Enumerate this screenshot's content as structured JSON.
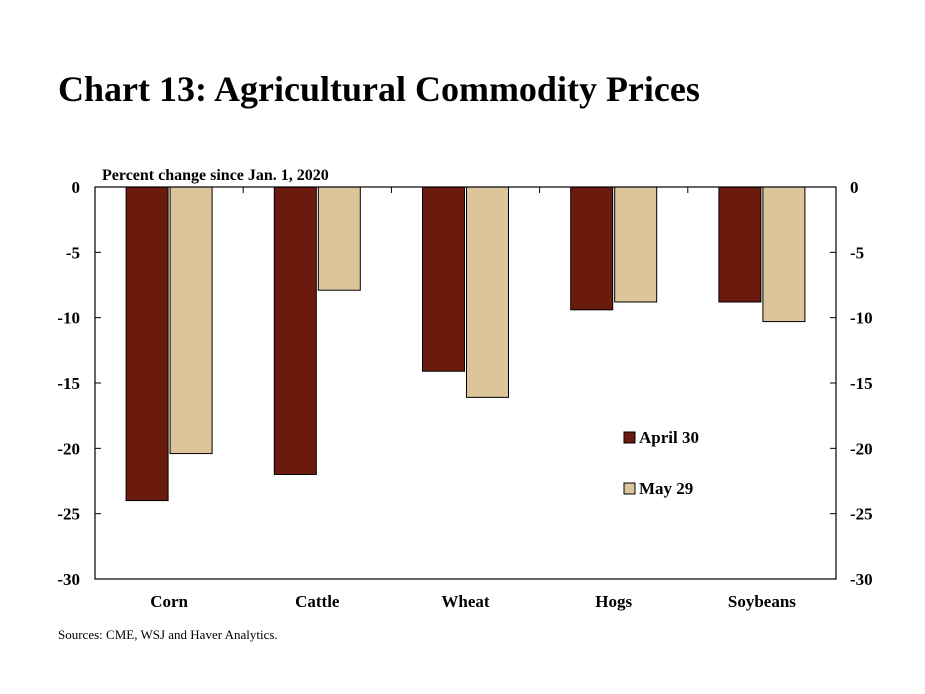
{
  "title": "Chart 13: Agricultural Commodity Prices",
  "source": "Sources: CME, WSJ and Haver Analytics.",
  "chart_data": {
    "type": "bar",
    "ylabel": "Percent change since Jan. 1, 2020",
    "xlabel": "",
    "ylim": [
      -30,
      0
    ],
    "yticks": [
      0,
      -5,
      -10,
      -15,
      -20,
      -25,
      -30
    ],
    "y_axis_sides": "both",
    "grid": false,
    "legend_position": "inside-right",
    "categories": [
      "Corn",
      "Cattle",
      "Wheat",
      "Hogs",
      "Soybeans"
    ],
    "series": [
      {
        "name": "April 30",
        "color": "#6b1a0e",
        "values": [
          -24.0,
          -22.0,
          -14.1,
          -9.4,
          -8.8
        ]
      },
      {
        "name": "May 29",
        "color": "#dcc59a",
        "values": [
          -20.4,
          -7.9,
          -16.1,
          -8.8,
          -10.3
        ]
      }
    ]
  }
}
